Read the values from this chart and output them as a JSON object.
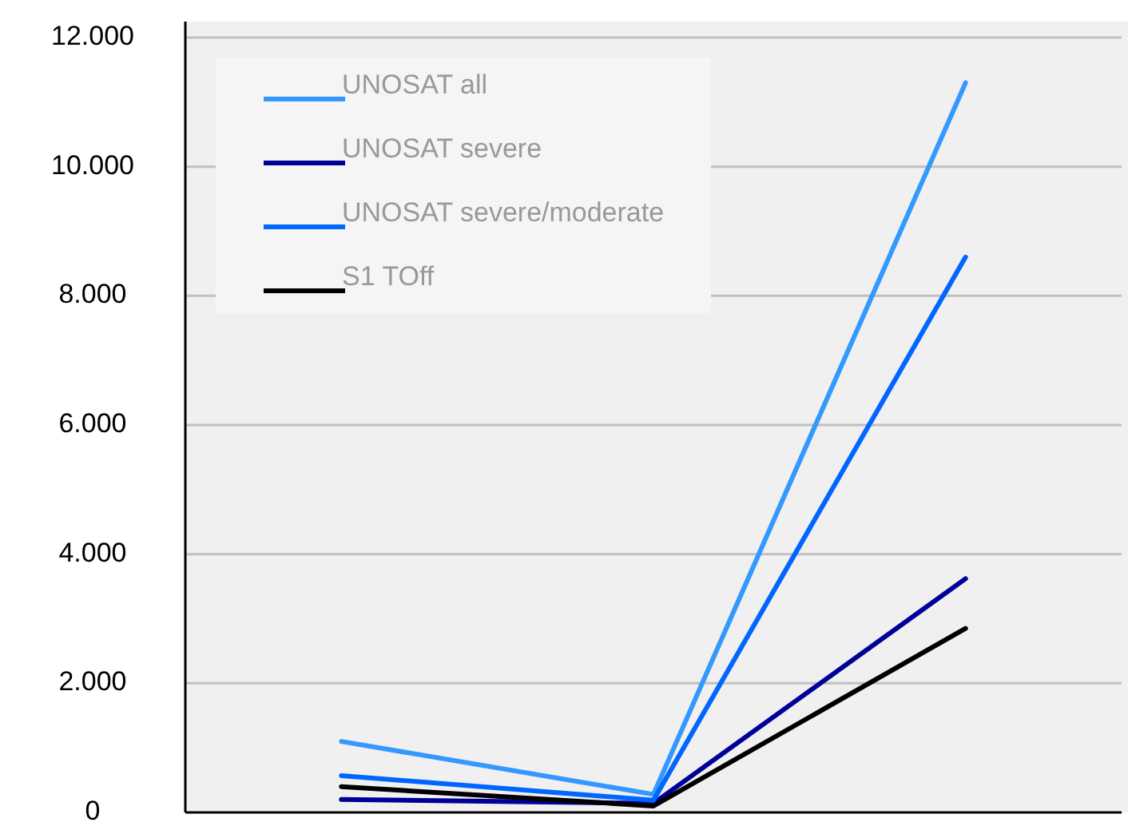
{
  "chart_data": {
    "type": "line",
    "categories": [
      null,
      null,
      null
    ],
    "series": [
      {
        "name": "UNOSAT all",
        "color": "#3399ff",
        "values": [
          1100,
          280,
          11300
        ]
      },
      {
        "name": "UNOSAT severe",
        "color": "#000099",
        "values": [
          200,
          140,
          3620
        ]
      },
      {
        "name": "UNOSAT severe/moderate",
        "color": "#0066ff",
        "values": [
          570,
          190,
          8600
        ]
      },
      {
        "name": "S1 TOff",
        "color": "#000000",
        "values": [
          400,
          100,
          2850
        ]
      }
    ],
    "ylim": [
      0,
      12000
    ],
    "yticks": [
      0,
      {
        "value": 2000,
        "label": "2.000"
      },
      {
        "value": 4000,
        "label": "4.000"
      },
      {
        "value": 6000,
        "label": "6.000"
      },
      {
        "value": 8000,
        "label": "8.000"
      },
      {
        "value": 10000,
        "label": "10.000"
      },
      {
        "value": 12000,
        "label": "12.000"
      }
    ],
    "grid": "y",
    "legend": "top left",
    "marker": "none",
    "line_style": "solid"
  }
}
